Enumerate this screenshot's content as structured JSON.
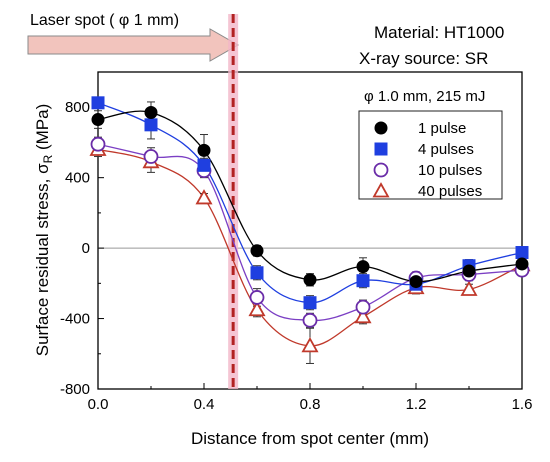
{
  "chart_data": {
    "type": "scatter",
    "xlabel": "Distance from spot center (mm)",
    "ylabel_main": "Surface residual stress, σ",
    "ylabel_sub": "R",
    "ylabel_unit": " (MPa)",
    "xlim": [
      0.0,
      1.6
    ],
    "ylim": [
      -800,
      1000
    ],
    "x_ticks": [
      "0.0",
      "0.4",
      "0.8",
      "1.2",
      "1.6"
    ],
    "y_ticks": [
      "-800",
      "-400",
      "0",
      "400",
      "800"
    ],
    "legend_title": "φ 1.0 mm, 215 mJ",
    "legend_position": "right",
    "annotations": {
      "laser_spot": "Laser spot ( φ 1 mm)",
      "material": "Material: HT1000",
      "xray": "X-ray source: SR"
    },
    "spot_edge_x": 0.51,
    "x": [
      0.0,
      0.2,
      0.4,
      0.6,
      0.8,
      1.0,
      1.2,
      1.4,
      1.6
    ],
    "series": [
      {
        "name": "1 pulse",
        "marker": "circle-filled",
        "color": "#000000",
        "line_color": "#000000",
        "values": [
          730,
          770,
          555,
          -15,
          -180,
          -105,
          -190,
          -130,
          -90
        ],
        "errors": [
          50,
          60,
          90,
          30,
          35,
          50,
          40,
          40,
          30
        ]
      },
      {
        "name": "4 pulses",
        "marker": "square-filled",
        "color": "#1f3fe0",
        "line_color": "#1f3fe0",
        "values": [
          825,
          700,
          470,
          -140,
          -310,
          -185,
          -205,
          -100,
          -25
        ],
        "errors": [
          30,
          80,
          40,
          40,
          40,
          40,
          30,
          35,
          25
        ]
      },
      {
        "name": "10 pulses",
        "marker": "circle-open",
        "color": "#6a2ca8",
        "line_color": "#7b3fc4",
        "values": [
          590,
          520,
          440,
          -280,
          -410,
          -335,
          -170,
          -150,
          -125
        ],
        "errors": [
          40,
          50,
          40,
          50,
          40,
          40,
          35,
          35,
          30
        ]
      },
      {
        "name": "40 pulses",
        "marker": "triangle-open",
        "color": "#c0392b",
        "line_color": "#c0392b",
        "values": [
          560,
          490,
          285,
          -350,
          -555,
          -390,
          -225,
          -235,
          -95
        ],
        "errors": [
          40,
          60,
          25,
          40,
          100,
          40,
          35,
          30,
          30
        ]
      }
    ]
  }
}
